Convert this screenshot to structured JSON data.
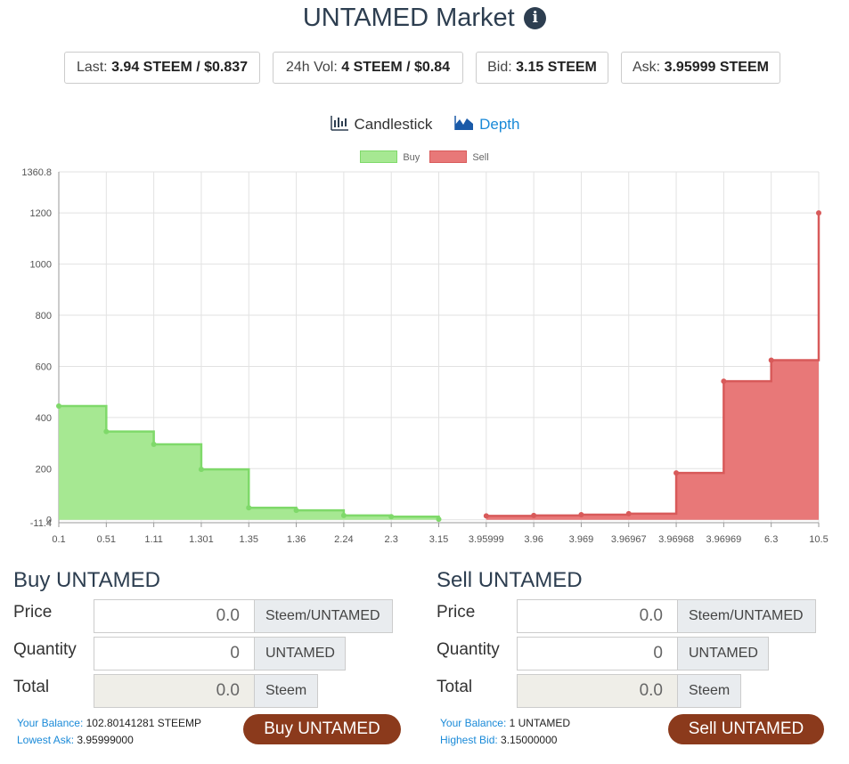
{
  "header": {
    "title": "UNTAMED Market",
    "info_icon": "info-icon"
  },
  "tickers": [
    {
      "label": "Last:",
      "value": "3.94 STEEM / $0.837"
    },
    {
      "label": "24h Vol:",
      "value": "4 STEEM / $0.84"
    },
    {
      "label": "Bid:",
      "value": "3.15 STEEM"
    },
    {
      "label": "Ask:",
      "value": "3.95999 STEEM"
    }
  ],
  "chart_tabs": {
    "candlestick": "Candlestick",
    "depth": "Depth",
    "active": "depth"
  },
  "colors": {
    "buy_fill": "#a6e892",
    "buy_line": "#7fd96a",
    "sell_fill": "#e87878",
    "sell_line": "#d85a5a",
    "title": "#2d3e50",
    "link": "#1a8ad8",
    "button": "#8b3a1c"
  },
  "chart_data": {
    "type": "area",
    "legend": [
      "Buy",
      "Sell"
    ],
    "legend_position": "top",
    "grid": true,
    "ylim": [
      -11.4,
      1360.8
    ],
    "y_ticks": [
      "1360.8",
      "1200",
      "1000",
      "800",
      "600",
      "400",
      "200",
      "0",
      "-11.4"
    ],
    "y_tick_values": [
      1360.8,
      1200,
      1000,
      800,
      600,
      400,
      200,
      0,
      -11.4
    ],
    "categories": [
      "0.1",
      "0.51",
      "1.11",
      "1.301",
      "1.35",
      "1.36",
      "2.24",
      "2.3",
      "3.15",
      "3.95999",
      "3.96",
      "3.969",
      "3.96967",
      "3.96968",
      "3.96969",
      "6.3",
      "10.5"
    ],
    "series": [
      {
        "name": "Buy",
        "values": [
          445,
          345,
          295,
          197,
          47,
          37,
          17,
          12,
          2,
          null,
          null,
          null,
          null,
          null,
          null,
          null,
          null
        ]
      },
      {
        "name": "Sell",
        "values": [
          null,
          null,
          null,
          null,
          null,
          null,
          null,
          null,
          null,
          15,
          17,
          20,
          24,
          183,
          542,
          624,
          1200
        ]
      }
    ]
  },
  "buy_panel": {
    "title": "Buy UNTAMED",
    "price_label": "Price",
    "price_value": "0.0",
    "price_unit": "Steem/UNTAMED",
    "quantity_label": "Quantity",
    "quantity_value": "0",
    "quantity_unit": "UNTAMED",
    "total_label": "Total",
    "total_value": "0.0",
    "total_unit": "Steem",
    "balance_label": "Your Balance:",
    "balance_value": "102.80141281 STEEMP",
    "ref_label": "Lowest Ask:",
    "ref_value": "3.95999000",
    "button_label": "Buy UNTAMED"
  },
  "sell_panel": {
    "title": "Sell UNTAMED",
    "price_label": "Price",
    "price_value": "0.0",
    "price_unit": "Steem/UNTAMED",
    "quantity_label": "Quantity",
    "quantity_value": "0",
    "quantity_unit": "UNTAMED",
    "total_label": "Total",
    "total_value": "0.0",
    "total_unit": "Steem",
    "balance_label": "Your Balance:",
    "balance_value": "1 UNTAMED",
    "ref_label": "Highest Bid:",
    "ref_value": "3.15000000",
    "button_label": "Sell UNTAMED"
  }
}
